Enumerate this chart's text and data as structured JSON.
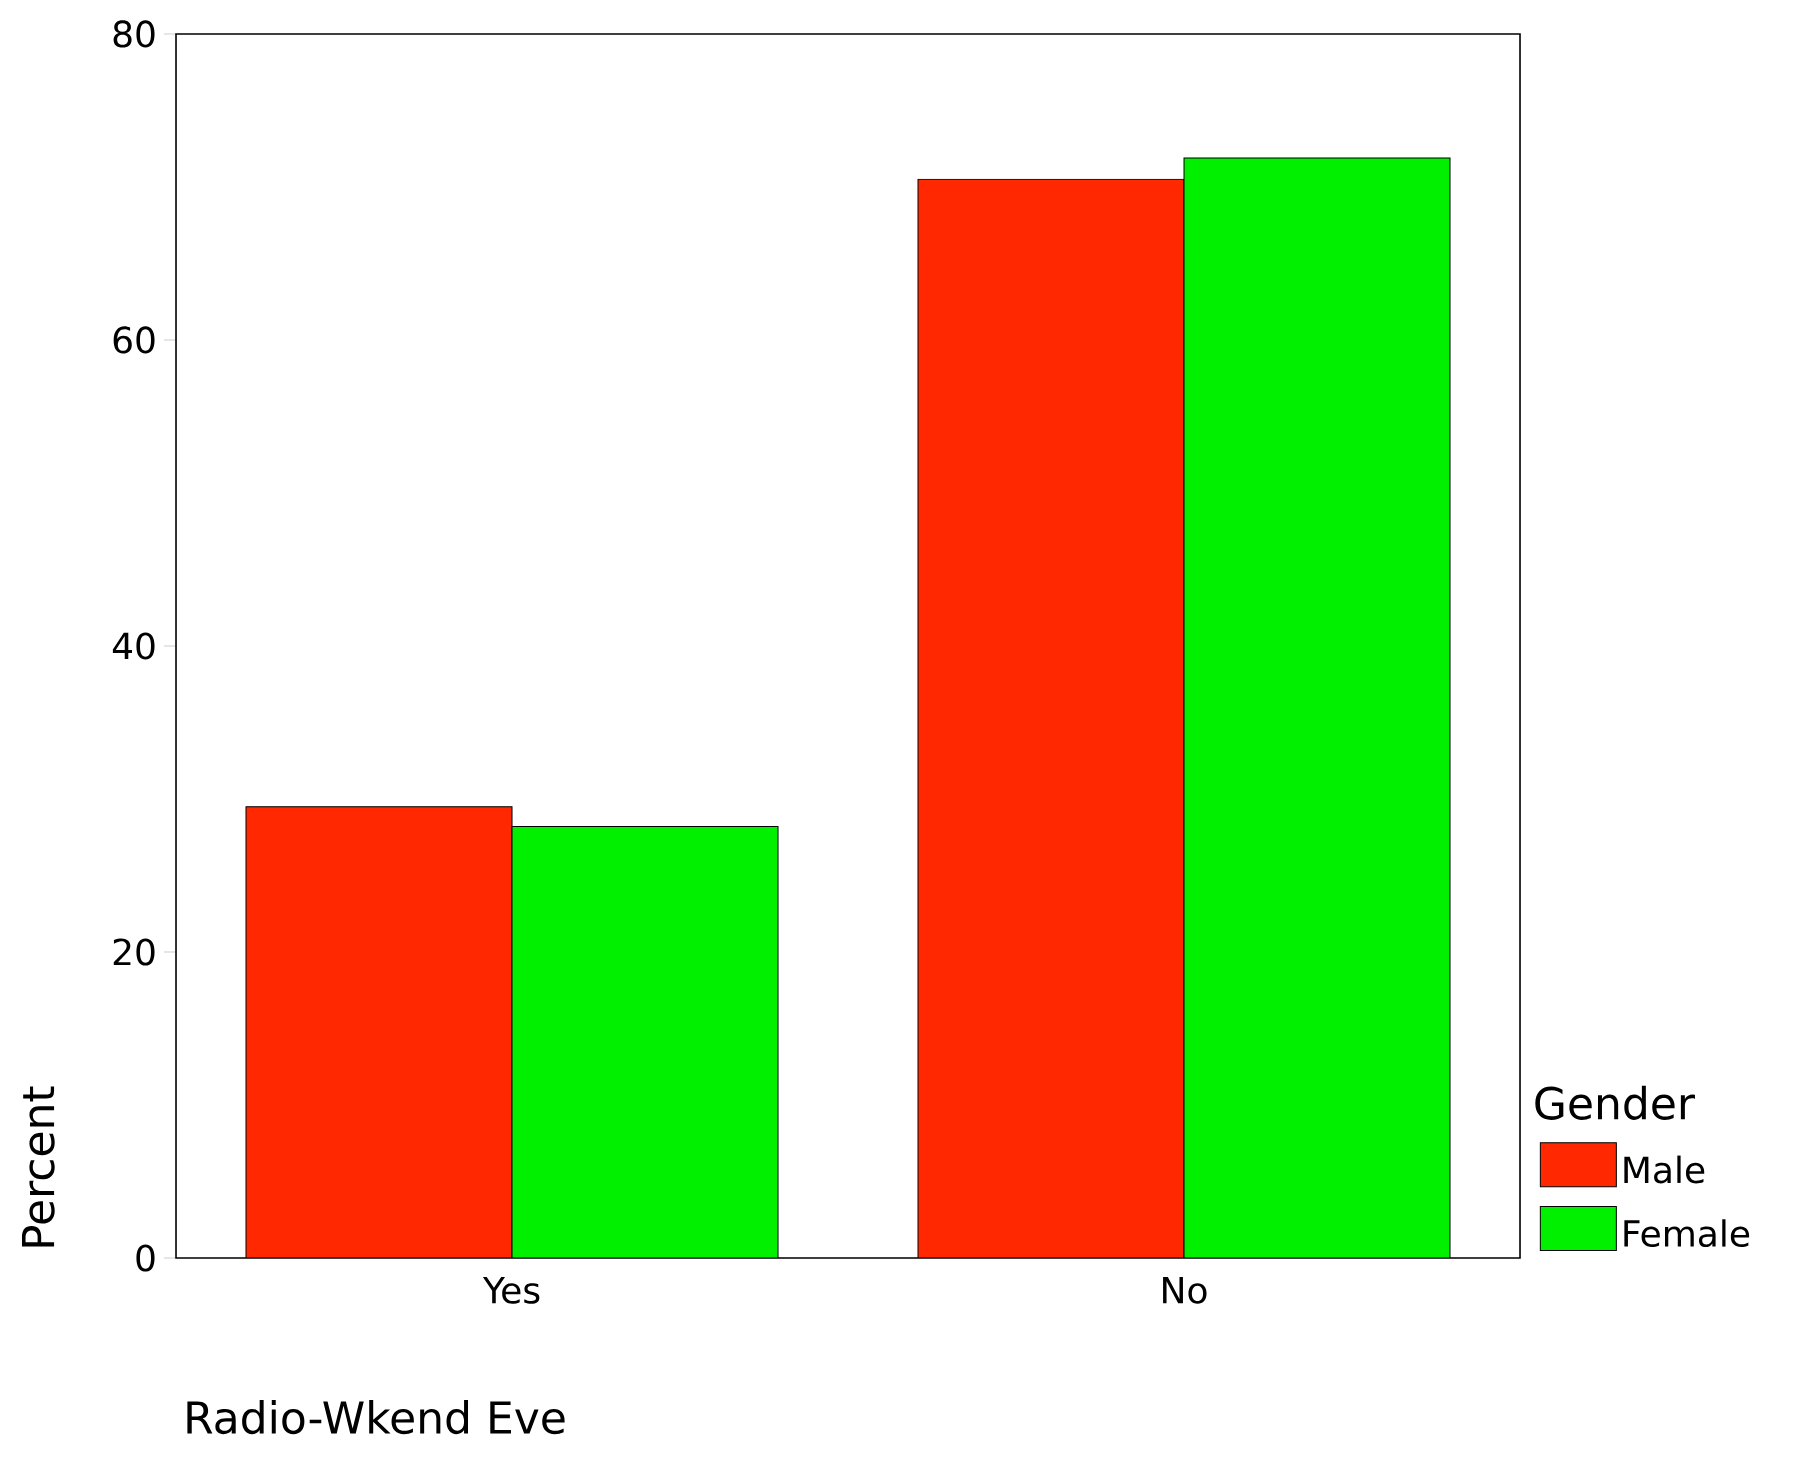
{
  "chart_data": {
    "type": "bar",
    "xlabel": "Radio-Wkend Eve",
    "ylabel": "Percent",
    "legend_title": "Gender",
    "categories": [
      "Yes",
      "No"
    ],
    "series": [
      {
        "name": "Male",
        "color": "#ff2800",
        "values": [
          29.5,
          70.5
        ]
      },
      {
        "name": "Female",
        "color": "#00f000",
        "values": [
          28.2,
          71.9
        ]
      }
    ],
    "ylim": [
      0,
      80
    ],
    "yticks": [
      0,
      20,
      40,
      60,
      80
    ],
    "grid": false,
    "legend": "bottom right"
  }
}
